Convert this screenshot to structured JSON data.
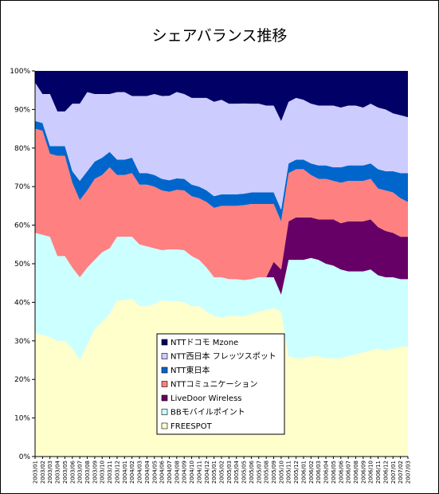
{
  "chart_data": {
    "type": "area",
    "stacked": "percent",
    "title": "シェアバランス推移",
    "xlabel": "",
    "ylabel": "",
    "ylim": [
      0,
      100
    ],
    "yticks": [
      "0%",
      "10%",
      "20%",
      "30%",
      "40%",
      "50%",
      "60%",
      "70%",
      "80%",
      "90%",
      "100%"
    ],
    "grid": false,
    "legend_position": "bottom-center",
    "x": [
      "2003/01",
      "2003/02",
      "2003/03",
      "2003/04",
      "2003/05",
      "2003/06",
      "2003/07",
      "2003/08",
      "2003/09",
      "2003/10",
      "2003/11",
      "2003/12",
      "2004/01",
      "2004/02",
      "2004/03",
      "2004/04",
      "2004/05",
      "2004/06",
      "2004/07",
      "2004/08",
      "2004/09",
      "2004/10",
      "2004/11",
      "2004/12",
      "2005/01",
      "2005/02",
      "2005/03",
      "2005/04",
      "2005/05",
      "2005/06",
      "2005/07",
      "2005/08",
      "2005/09",
      "2005/10",
      "2005/11",
      "2005/12",
      "2006/01",
      "2006/02",
      "2006/03",
      "2006/04",
      "2006/05",
      "2006/06",
      "2006/07",
      "2006/08",
      "2006/09",
      "2006/10",
      "2006/11",
      "2006/12",
      "2007/01",
      "2007/02",
      "2007/03"
    ],
    "series": [
      {
        "name": "FREESPOT",
        "color": "#ffffcc",
        "values": [
          32,
          31.5,
          31,
          30,
          30,
          28,
          25,
          29,
          33,
          35,
          37,
          40.5,
          40.5,
          41,
          39,
          39,
          39.5,
          40.5,
          40.5,
          40.5,
          40,
          39,
          39,
          37.5,
          36.5,
          36,
          36.5,
          36.5,
          36.5,
          37,
          37.5,
          38,
          38.5,
          37.5,
          26,
          25.5,
          25.5,
          26,
          26,
          25.5,
          25.5,
          25.5,
          26,
          26.5,
          27,
          27.5,
          28,
          27.5,
          28,
          28.5,
          28.5
        ]
      },
      {
        "name": "BBモバイルポイント",
        "color": "#ccffff",
        "values": [
          26,
          26,
          26,
          22,
          22,
          21,
          21.5,
          20,
          18,
          18,
          17,
          16.5,
          16.5,
          16,
          16,
          15.5,
          14.5,
          13,
          13.5,
          13.5,
          13.5,
          13,
          12,
          11.5,
          10,
          10.5,
          9.5,
          9.5,
          9.5,
          9,
          9,
          8.5,
          8,
          4.5,
          25,
          25.5,
          25.5,
          25.5,
          25,
          24.5,
          24,
          23,
          22,
          21.5,
          21,
          21,
          19,
          19,
          18.5,
          17.5,
          17.5
        ]
      },
      {
        "name": "LiveDoor Wireless",
        "color": "#660066",
        "values": [
          0,
          0,
          0,
          0,
          0,
          0,
          0,
          0,
          0,
          0,
          0,
          0,
          0,
          0,
          0,
          0,
          0,
          0,
          0,
          0,
          0,
          0,
          0,
          0,
          0,
          0,
          0,
          0,
          0,
          0,
          0,
          0,
          4,
          6.5,
          10,
          11,
          11,
          10.5,
          10.5,
          11.5,
          12,
          12,
          13,
          13,
          13,
          13,
          12.5,
          12,
          11.5,
          11,
          11
        ]
      },
      {
        "name": "NTTコミュニケーション",
        "color": "#ff8080",
        "values": [
          27,
          27,
          21.5,
          26,
          26,
          22,
          20,
          20,
          21,
          20,
          21,
          16,
          16,
          16.5,
          15.5,
          16,
          16,
          15.5,
          15,
          15.5,
          15.5,
          15.5,
          16,
          17,
          18,
          18.5,
          19,
          19,
          19.5,
          19.5,
          19,
          19,
          15,
          12.5,
          12.5,
          12.5,
          12.5,
          11,
          10.5,
          10.5,
          10,
          10.5,
          10.5,
          10.5,
          10.5,
          10.5,
          10,
          10.5,
          10.5,
          10,
          9
        ]
      },
      {
        "name": "NTT東日本",
        "color": "#0066cc",
        "values": [
          2,
          2,
          2,
          2.5,
          2.5,
          3,
          5,
          5,
          4.5,
          4.5,
          4,
          4,
          4,
          4,
          3,
          3,
          3,
          3,
          3,
          3,
          3,
          3,
          3,
          3,
          3,
          3,
          3,
          3,
          3,
          3,
          3,
          3,
          3,
          3,
          2.5,
          2.5,
          2.5,
          3,
          3.5,
          3.5,
          3.5,
          4,
          4,
          4,
          4,
          4,
          5,
          5,
          5.5,
          6.5,
          7.5
        ]
      },
      {
        "name": "NTT西日本 フレッツスポット",
        "color": "#ccccff",
        "values": [
          10,
          7.5,
          13.5,
          9,
          9,
          17.5,
          20,
          20.5,
          17.5,
          16.5,
          15,
          17.5,
          17.5,
          16,
          20,
          20,
          21,
          21.5,
          22,
          22.5,
          22,
          22.5,
          23,
          24,
          24.5,
          24.5,
          23.5,
          23.5,
          23.5,
          23,
          23,
          22.5,
          22.5,
          23,
          16,
          16,
          15.5,
          15.5,
          15.5,
          15.5,
          16,
          15.5,
          15.5,
          15.5,
          15,
          15.5,
          16,
          16,
          15,
          15,
          14.5
        ]
      },
      {
        "name": "NTTドコモ Mzone",
        "color": "#000066",
        "values": [
          3,
          6,
          6,
          10.5,
          10.5,
          8.5,
          8.5,
          5.5,
          6,
          6,
          6,
          5.5,
          5.5,
          6.5,
          6.5,
          6.5,
          6,
          6.5,
          6.5,
          5.5,
          6,
          7,
          7,
          7,
          8,
          7.5,
          8.5,
          8.5,
          8.5,
          8.5,
          8.5,
          9,
          9,
          13,
          8,
          7,
          7.5,
          8.5,
          9,
          9,
          9,
          9.5,
          9,
          9,
          9.5,
          8.5,
          9.5,
          10,
          11,
          11.5,
          12
        ]
      }
    ]
  }
}
